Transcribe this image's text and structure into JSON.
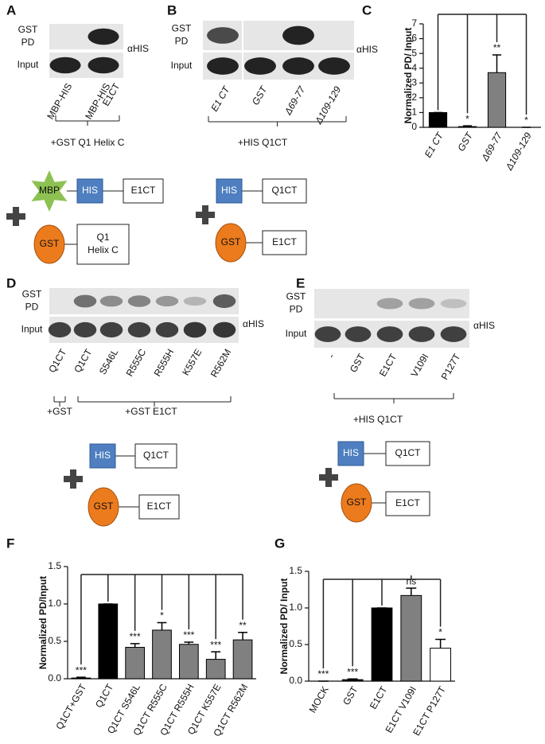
{
  "blots": [
    {
      "label": "A",
      "pd": [
        "GST",
        "PD"
      ],
      "input": "Input",
      "antibody": "αHIS",
      "lanes": [
        [
          "MBP-HIS"
        ],
        [
          "MBP-HIS",
          "E1CT"
        ]
      ],
      "conditions": [
        "+GST Q1 Helix C"
      ]
    },
    {
      "label": "B",
      "pd": [
        "GST",
        "PD"
      ],
      "input": "Input",
      "antibody": "αHIS",
      "lanes": [
        [
          "E1 CT"
        ],
        [
          "GST"
        ],
        [
          "Δ69-77"
        ],
        [
          "Δ109-129"
        ]
      ],
      "conditions": [
        "+HIS Q1CT"
      ]
    },
    {
      "label": "D",
      "pd": [
        "GST",
        "PD"
      ],
      "input": "Input",
      "antibody": "αHIS",
      "lanes": [
        [
          "Q1CT"
        ],
        [
          "Q1CT"
        ],
        [
          "S546L"
        ],
        [
          "R555C"
        ],
        [
          "R555H"
        ],
        [
          "K557E"
        ],
        [
          "R562M"
        ]
      ],
      "conditions": [
        "+GST",
        "+GST E1CT"
      ]
    },
    {
      "label": "E",
      "pd": [
        "GST",
        "PD"
      ],
      "input": "Input",
      "antibody": "αHIS",
      "lanes": [
        [
          "-"
        ],
        [
          "GST"
        ],
        [
          "E1CT"
        ],
        [
          "V109I"
        ],
        [
          "P127T"
        ]
      ],
      "conditions": [
        "+HIS Q1CT"
      ]
    }
  ],
  "diagrams": [
    {
      "tag": "MBP",
      "his": "HIS",
      "his_partner": [
        "E1CT"
      ],
      "gst": "GST",
      "gst_partner": [
        "Q1",
        "Helix C"
      ]
    },
    {
      "his": "HIS",
      "his_partner": [
        "Q1CT"
      ],
      "gst": "GST",
      "gst_partner": [
        "E1CT"
      ]
    },
    {
      "his": "HIS",
      "his_partner": [
        "Q1CT"
      ],
      "gst": "GST",
      "gst_partner": [
        "E1CT"
      ]
    },
    {
      "his": "HIS",
      "his_partner": [
        "Q1CT"
      ],
      "gst": "GST",
      "gst_partner": [
        "E1CT"
      ]
    }
  ],
  "chart_data": [
    {
      "type": "bar",
      "label": "C",
      "y_label": "Normalized PD/ Input",
      "categories": [
        "E1 CT",
        "GST",
        "Δ69-77",
        "Δ109-129"
      ],
      "values": [
        1,
        0.05,
        3.7,
        0
      ],
      "errors": [
        0,
        0.05,
        1.2,
        0
      ],
      "colors": [
        "#000000",
        "#000000",
        "#808080",
        "#ffffff"
      ],
      "annotations": [
        null,
        "*",
        "**",
        "*"
      ],
      "ylim": [
        0,
        7
      ],
      "yticks": [
        0,
        1,
        2,
        3,
        4,
        5,
        6,
        7
      ]
    },
    {
      "type": "bar",
      "label": "F",
      "y_label": "Normalized PD/Input",
      "categories": [
        "Q1CT+GST",
        "Q1CT",
        "Q1CT S546L",
        "Q1CT R555C",
        "Q1CT R555H",
        "Q1CT K557E",
        "Q1CT R562M"
      ],
      "values": [
        0.01,
        1,
        0.42,
        0.65,
        0.46,
        0.26,
        0.52
      ],
      "errors": [
        0.01,
        0,
        0.05,
        0.1,
        0.03,
        0.1,
        0.1
      ],
      "colors": [
        "#000000",
        "#000000",
        "#808080",
        "#808080",
        "#808080",
        "#808080",
        "#808080"
      ],
      "annotations": [
        "***",
        null,
        "***",
        "*",
        "***",
        "***",
        "**"
      ],
      "ylim": [
        0,
        1.5
      ],
      "yticks": [
        {
          "value": 0,
          "label": "0.0"
        },
        0.5,
        {
          "value": 1,
          "label": "1.0"
        },
        1.5
      ]
    },
    {
      "type": "bar",
      "label": "G",
      "y_label": "Normalized PD/ Input",
      "categories": [
        "MOCK",
        "GST",
        "E1CT",
        "E1CT V109I",
        "E1CT P127T"
      ],
      "values": [
        0,
        0.02,
        1,
        1.17,
        0.45
      ],
      "errors": [
        0,
        0.01,
        0,
        0.1,
        0.12
      ],
      "colors": [
        "#000000",
        "#000000",
        "#000000",
        "#808080",
        "#ffffff"
      ],
      "annotations": [
        "***",
        "***",
        null,
        "ns",
        "*"
      ],
      "ylim": [
        0,
        1.5
      ],
      "yticks": [
        {
          "value": 0,
          "label": "0.0"
        },
        0.5,
        {
          "value": 1,
          "label": "1.0"
        },
        1.5
      ]
    }
  ]
}
